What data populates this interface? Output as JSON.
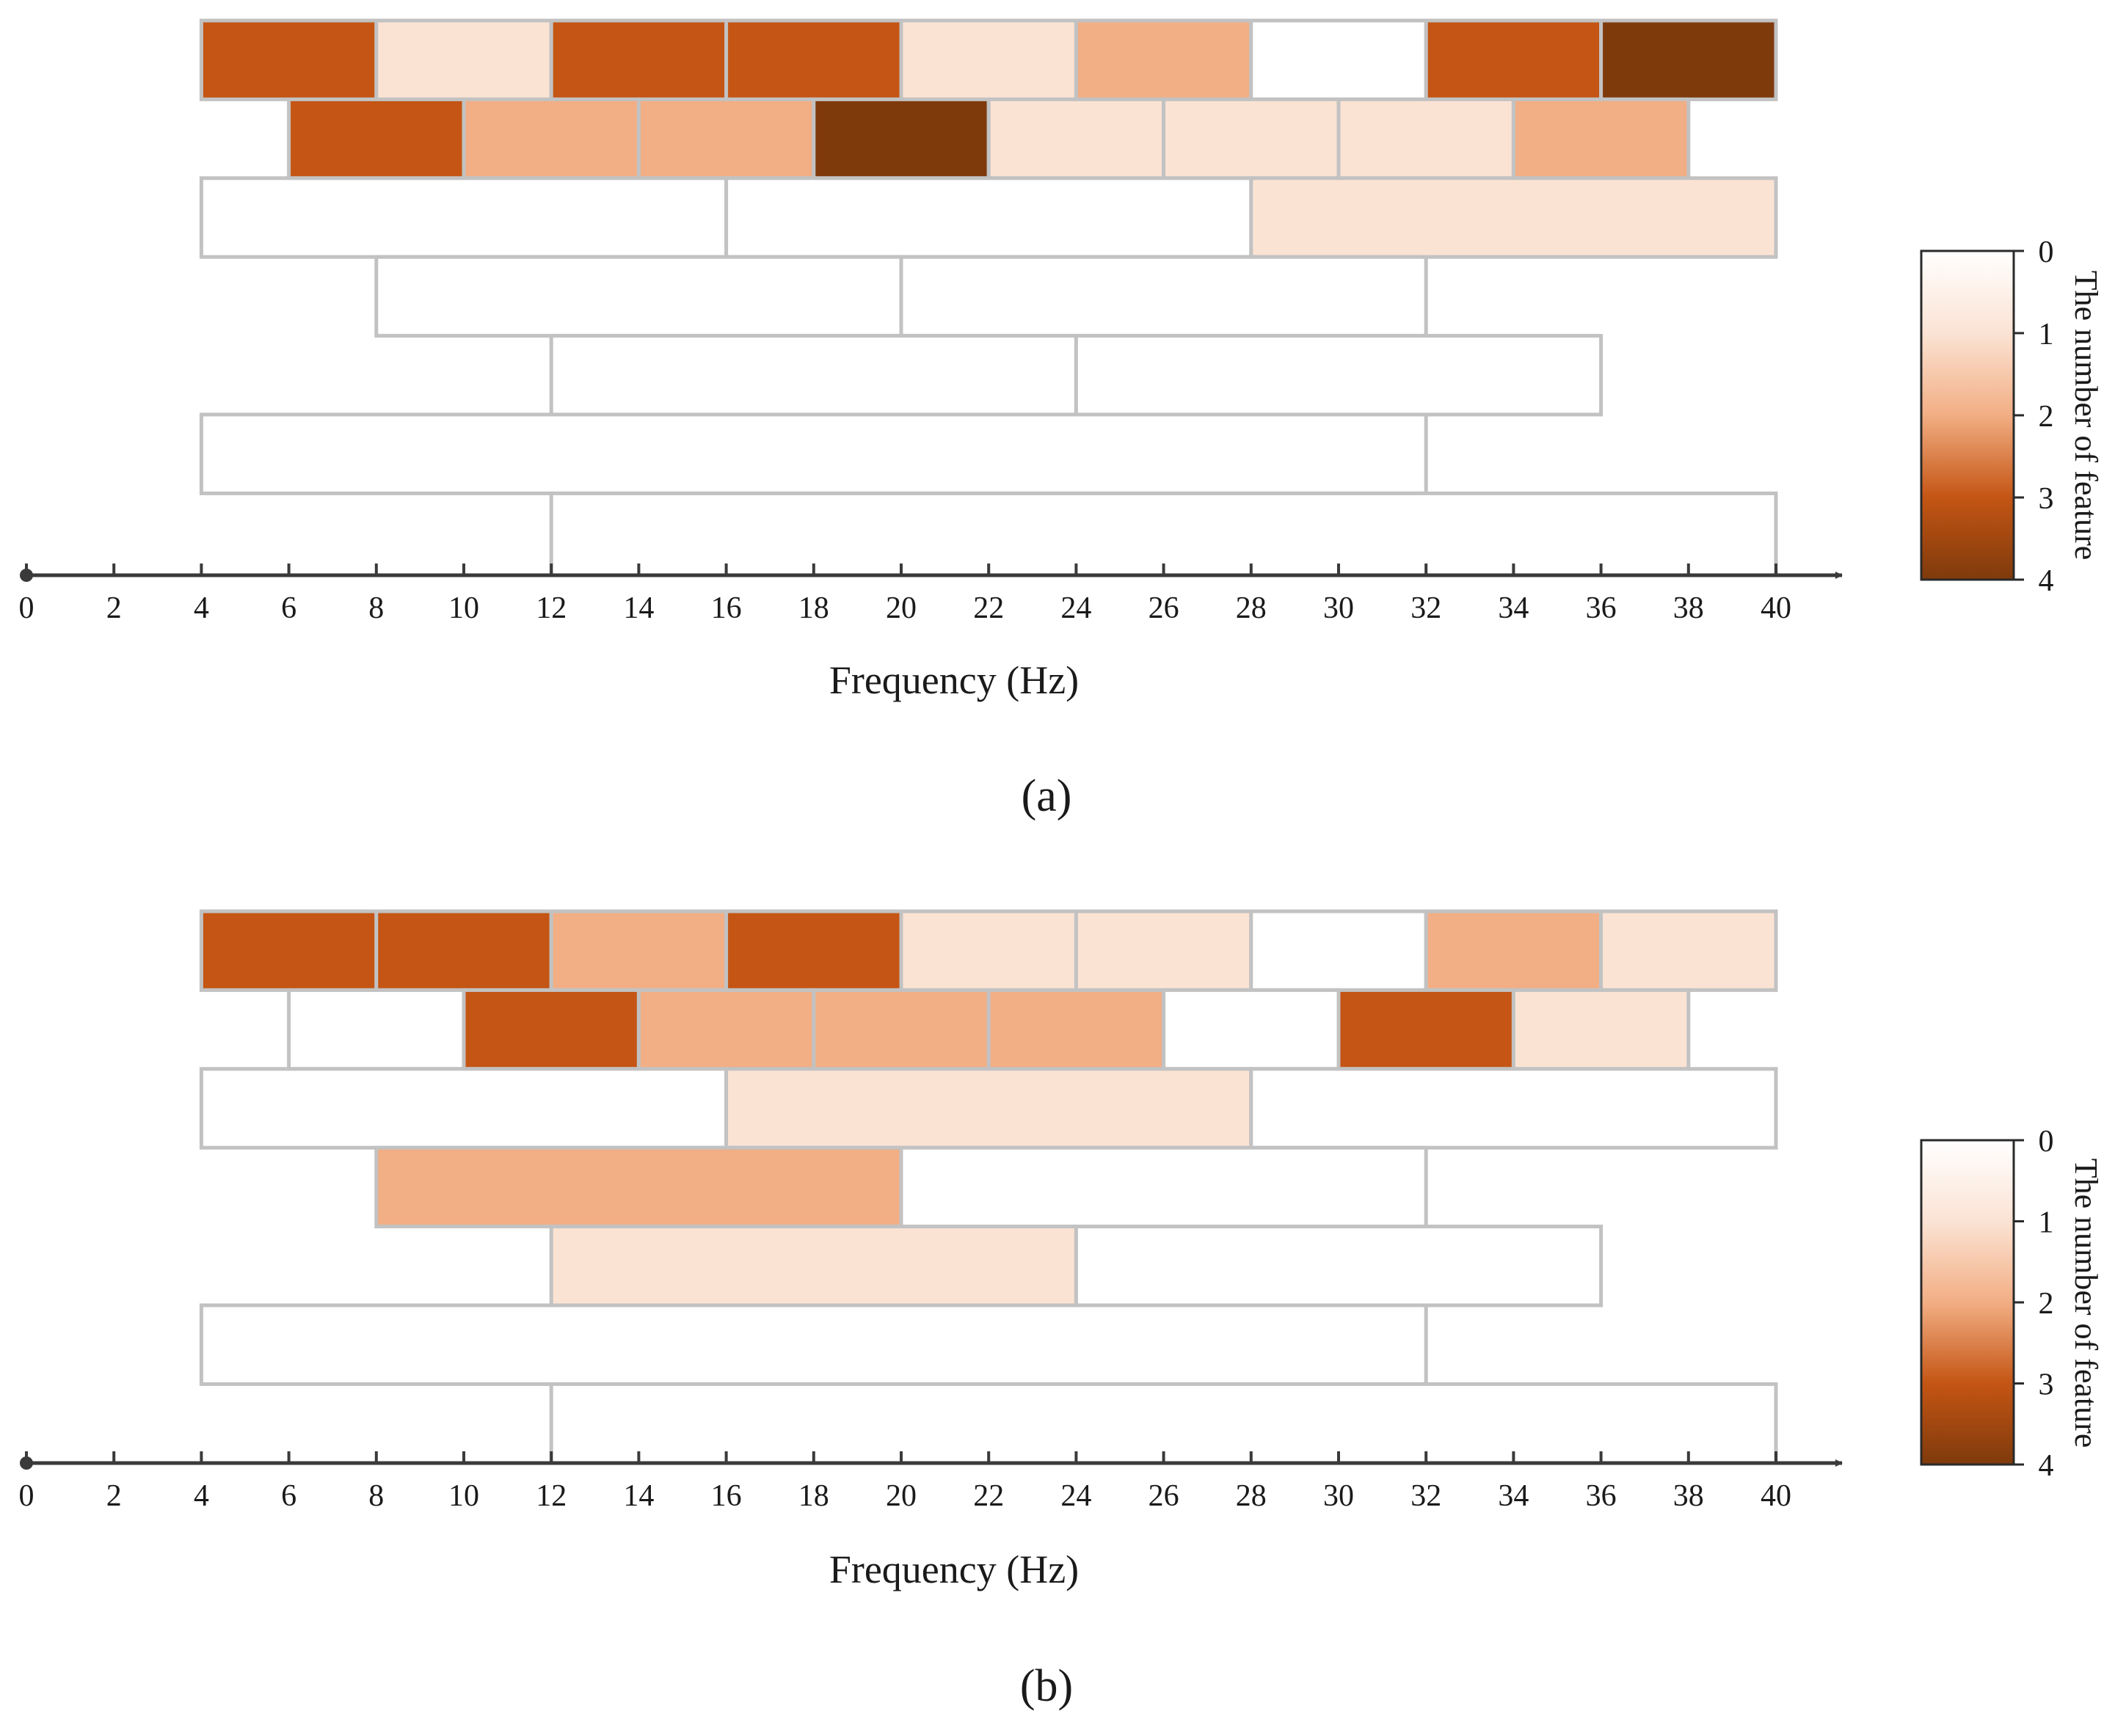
{
  "chart_data": [
    {
      "type": "heatmap",
      "panel_label": "(a)",
      "xlabel": "Frequency (Hz)",
      "xlim": [
        0,
        40
      ],
      "xticks": [
        0,
        2,
        4,
        6,
        8,
        10,
        12,
        14,
        16,
        18,
        20,
        22,
        24,
        26,
        28,
        30,
        32,
        34,
        36,
        38,
        40
      ],
      "colorbar": {
        "label": "The number of feature",
        "min": 0,
        "max": 4,
        "ticks": [
          0,
          1,
          2,
          3,
          4
        ]
      },
      "rows": [
        {
          "bands": [
            {
              "start": 4,
              "end": 8,
              "value": 3
            },
            {
              "start": 8,
              "end": 12,
              "value": 1
            },
            {
              "start": 12,
              "end": 16,
              "value": 3
            },
            {
              "start": 16,
              "end": 20,
              "value": 3
            },
            {
              "start": 20,
              "end": 24,
              "value": 1
            },
            {
              "start": 24,
              "end": 28,
              "value": 2
            },
            {
              "start": 28,
              "end": 32,
              "value": 0
            },
            {
              "start": 32,
              "end": 36,
              "value": 3
            },
            {
              "start": 36,
              "end": 40,
              "value": 4
            }
          ]
        },
        {
          "bands": [
            {
              "start": 6,
              "end": 10,
              "value": 3
            },
            {
              "start": 10,
              "end": 14,
              "value": 2
            },
            {
              "start": 14,
              "end": 18,
              "value": 2
            },
            {
              "start": 18,
              "end": 22,
              "value": 4
            },
            {
              "start": 22,
              "end": 26,
              "value": 1
            },
            {
              "start": 26,
              "end": 30,
              "value": 1
            },
            {
              "start": 30,
              "end": 34,
              "value": 1
            },
            {
              "start": 34,
              "end": 38,
              "value": 2
            }
          ]
        },
        {
          "bands": [
            {
              "start": 4,
              "end": 16,
              "value": 0
            },
            {
              "start": 16,
              "end": 28,
              "value": 0
            },
            {
              "start": 28,
              "end": 40,
              "value": 1
            }
          ]
        },
        {
          "bands": [
            {
              "start": 8,
              "end": 20,
              "value": 0
            },
            {
              "start": 20,
              "end": 32,
              "value": 0
            }
          ]
        },
        {
          "bands": [
            {
              "start": 12,
              "end": 24,
              "value": 0
            },
            {
              "start": 24,
              "end": 36,
              "value": 0
            }
          ]
        },
        {
          "bands": [
            {
              "start": 4,
              "end": 32,
              "value": 0
            }
          ]
        },
        {
          "bands": [
            {
              "start": 12,
              "end": 40,
              "value": 0
            }
          ]
        }
      ]
    },
    {
      "type": "heatmap",
      "panel_label": "(b)",
      "xlabel": "Frequency (Hz)",
      "xlim": [
        0,
        40
      ],
      "xticks": [
        0,
        2,
        4,
        6,
        8,
        10,
        12,
        14,
        16,
        18,
        20,
        22,
        24,
        26,
        28,
        30,
        32,
        34,
        36,
        38,
        40
      ],
      "colorbar": {
        "label": "The number of feature",
        "min": 0,
        "max": 4,
        "ticks": [
          0,
          1,
          2,
          3,
          4
        ]
      },
      "rows": [
        {
          "bands": [
            {
              "start": 4,
              "end": 8,
              "value": 3
            },
            {
              "start": 8,
              "end": 12,
              "value": 3
            },
            {
              "start": 12,
              "end": 16,
              "value": 2
            },
            {
              "start": 16,
              "end": 20,
              "value": 3
            },
            {
              "start": 20,
              "end": 24,
              "value": 1
            },
            {
              "start": 24,
              "end": 28,
              "value": 1
            },
            {
              "start": 28,
              "end": 32,
              "value": 0
            },
            {
              "start": 32,
              "end": 36,
              "value": 2
            },
            {
              "start": 36,
              "end": 40,
              "value": 1
            }
          ]
        },
        {
          "bands": [
            {
              "start": 6,
              "end": 10,
              "value": 0
            },
            {
              "start": 10,
              "end": 14,
              "value": 3
            },
            {
              "start": 14,
              "end": 18,
              "value": 2
            },
            {
              "start": 18,
              "end": 22,
              "value": 2
            },
            {
              "start": 22,
              "end": 26,
              "value": 2
            },
            {
              "start": 26,
              "end": 30,
              "value": 0
            },
            {
              "start": 30,
              "end": 34,
              "value": 3
            },
            {
              "start": 34,
              "end": 38,
              "value": 1
            }
          ]
        },
        {
          "bands": [
            {
              "start": 4,
              "end": 16,
              "value": 0
            },
            {
              "start": 16,
              "end": 28,
              "value": 1
            },
            {
              "start": 28,
              "end": 40,
              "value": 0
            }
          ]
        },
        {
          "bands": [
            {
              "start": 8,
              "end": 20,
              "value": 2
            },
            {
              "start": 20,
              "end": 32,
              "value": 0
            }
          ]
        },
        {
          "bands": [
            {
              "start": 12,
              "end": 24,
              "value": 1
            },
            {
              "start": 24,
              "end": 36,
              "value": 0
            }
          ]
        },
        {
          "bands": [
            {
              "start": 4,
              "end": 32,
              "value": 0
            }
          ]
        },
        {
          "bands": [
            {
              "start": 12,
              "end": 40,
              "value": 0
            }
          ]
        }
      ]
    }
  ],
  "colors": {
    "scale": [
      "#ffffff",
      "#fbe3d4",
      "#f2ae84",
      "#c45514",
      "#7f3a0c"
    ],
    "cell_border": "#c2c2c2",
    "axis": "#3a3a3a"
  }
}
